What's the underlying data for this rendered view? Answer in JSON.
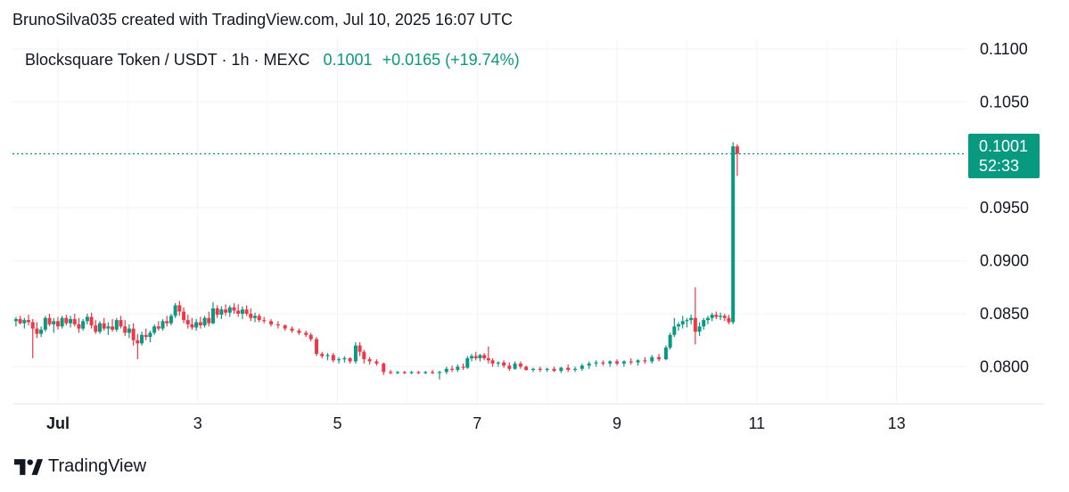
{
  "attribution": "BrunoSilva035 created with TradingView.com, Jul 10, 2025 16:07 UTC",
  "legend": {
    "symbol": "Blocksquare Token / USDT · 1h · MEXC",
    "price": "0.1001",
    "change": "+0.0165 (+19.74%)"
  },
  "price_tag": {
    "price": "0.1001",
    "countdown": "52:33"
  },
  "footer": {
    "brand": "TradingView",
    "logo_icon": "tradingview-logo-icon"
  },
  "colors": {
    "up": "#089981",
    "down": "#F23645",
    "grid": "#F0F3FA",
    "dotted": "#089981"
  },
  "chart_data": {
    "type": "candlestick",
    "xlabel": "",
    "ylabel": "",
    "x_ticks": [
      "Jul",
      "3",
      "5",
      "7",
      "9",
      "11",
      "13"
    ],
    "y_ticks": [
      "0.1100",
      "0.1050",
      "0.0950",
      "0.0900",
      "0.0850",
      "0.0800"
    ],
    "ylim": [
      0.0765,
      0.111
    ],
    "xlim_days": [
      0.35,
      14.0
    ],
    "last_price": 0.1001,
    "grid": true,
    "series": [
      {
        "values": [
          [
            0.4,
            0.0843,
            0.0847,
            0.0838,
            0.0845
          ],
          [
            0.46,
            0.0845,
            0.0848,
            0.084,
            0.0841
          ],
          [
            0.52,
            0.0841,
            0.0846,
            0.0836,
            0.0844
          ],
          [
            0.58,
            0.0844,
            0.0849,
            0.0839,
            0.0842
          ],
          [
            0.64,
            0.0842,
            0.0845,
            0.0808,
            0.0836
          ],
          [
            0.7,
            0.0836,
            0.0842,
            0.0827,
            0.0831
          ],
          [
            0.76,
            0.0831,
            0.0838,
            0.0828,
            0.0835
          ],
          [
            0.82,
            0.0835,
            0.0848,
            0.0833,
            0.0846
          ],
          [
            0.88,
            0.0846,
            0.085,
            0.0838,
            0.084
          ],
          [
            0.94,
            0.084,
            0.0846,
            0.0832,
            0.0843
          ],
          [
            1.0,
            0.0843,
            0.0847,
            0.0835,
            0.0838
          ],
          [
            1.06,
            0.0838,
            0.0848,
            0.0836,
            0.0846
          ],
          [
            1.12,
            0.0846,
            0.0849,
            0.0839,
            0.0841
          ],
          [
            1.18,
            0.0841,
            0.0848,
            0.0837,
            0.0845
          ],
          [
            1.24,
            0.0845,
            0.085,
            0.0838,
            0.084
          ],
          [
            1.3,
            0.084,
            0.0846,
            0.0832,
            0.0836
          ],
          [
            1.36,
            0.0836,
            0.0845,
            0.0834,
            0.0843
          ],
          [
            1.42,
            0.0843,
            0.085,
            0.084,
            0.0847
          ],
          [
            1.48,
            0.0847,
            0.0851,
            0.0836,
            0.0839
          ],
          [
            1.54,
            0.0839,
            0.0844,
            0.0831,
            0.0833
          ],
          [
            1.6,
            0.0833,
            0.0843,
            0.0831,
            0.0841
          ],
          [
            1.66,
            0.0841,
            0.0846,
            0.0834,
            0.0836
          ],
          [
            1.72,
            0.0836,
            0.0842,
            0.083,
            0.0838
          ],
          [
            1.78,
            0.0838,
            0.0845,
            0.0833,
            0.0835
          ],
          [
            1.84,
            0.0835,
            0.0846,
            0.0833,
            0.0844
          ],
          [
            1.9,
            0.0844,
            0.0848,
            0.0836,
            0.0838
          ],
          [
            1.96,
            0.0838,
            0.0844,
            0.0829,
            0.0832
          ],
          [
            2.02,
            0.0832,
            0.084,
            0.0827,
            0.0836
          ],
          [
            2.08,
            0.0836,
            0.0841,
            0.082,
            0.0825
          ],
          [
            2.14,
            0.0825,
            0.0831,
            0.0807,
            0.0822
          ],
          [
            2.2,
            0.0822,
            0.0833,
            0.082,
            0.083
          ],
          [
            2.26,
            0.083,
            0.0836,
            0.0825,
            0.0828
          ],
          [
            2.32,
            0.0828,
            0.0834,
            0.0823,
            0.0832
          ],
          [
            2.38,
            0.0832,
            0.084,
            0.083,
            0.0838
          ],
          [
            2.44,
            0.0838,
            0.0843,
            0.0834,
            0.0836
          ],
          [
            2.5,
            0.0836,
            0.0845,
            0.0834,
            0.0843
          ],
          [
            2.56,
            0.0843,
            0.0848,
            0.0838,
            0.0841
          ],
          [
            2.62,
            0.0841,
            0.085,
            0.0839,
            0.0848
          ],
          [
            2.68,
            0.0848,
            0.086,
            0.0846,
            0.0858
          ],
          [
            2.74,
            0.0858,
            0.0862,
            0.0848,
            0.0852
          ],
          [
            2.8,
            0.0852,
            0.0856,
            0.0841,
            0.0844
          ],
          [
            2.86,
            0.0844,
            0.0849,
            0.0836,
            0.084
          ],
          [
            2.92,
            0.084,
            0.0846,
            0.0835,
            0.0837
          ],
          [
            2.98,
            0.0837,
            0.0845,
            0.0834,
            0.0842
          ],
          [
            3.04,
            0.0842,
            0.0847,
            0.0836,
            0.0839
          ],
          [
            3.1,
            0.0839,
            0.0848,
            0.0837,
            0.0846
          ],
          [
            3.16,
            0.0846,
            0.0852,
            0.0838,
            0.0841
          ],
          [
            3.22,
            0.0841,
            0.0861,
            0.084,
            0.0855
          ],
          [
            3.28,
            0.0855,
            0.0858,
            0.0846,
            0.0849
          ],
          [
            3.34,
            0.0849,
            0.0857,
            0.0845,
            0.0854
          ],
          [
            3.4,
            0.0854,
            0.0859,
            0.0848,
            0.0851
          ],
          [
            3.46,
            0.0851,
            0.0858,
            0.0847,
            0.0856
          ],
          [
            3.52,
            0.0856,
            0.086,
            0.085,
            0.0853
          ],
          [
            3.58,
            0.0853,
            0.0859,
            0.0847,
            0.085
          ],
          [
            3.64,
            0.085,
            0.0857,
            0.0845,
            0.0854
          ],
          [
            3.7,
            0.0854,
            0.0858,
            0.0848,
            0.085
          ],
          [
            3.76,
            0.085,
            0.0855,
            0.0843,
            0.0846
          ],
          [
            3.82,
            0.0846,
            0.0851,
            0.0842,
            0.0848
          ],
          [
            3.88,
            0.0848,
            0.085,
            0.0842,
            0.0844
          ],
          [
            3.95,
            0.0844,
            0.0847,
            0.0841,
            0.0843
          ],
          [
            4.05,
            0.0843,
            0.0845,
            0.0838,
            0.084
          ],
          [
            4.15,
            0.084,
            0.0843,
            0.0836,
            0.0839
          ],
          [
            4.25,
            0.0839,
            0.084,
            0.0834,
            0.0836
          ],
          [
            4.35,
            0.0836,
            0.0838,
            0.0832,
            0.0834
          ],
          [
            4.45,
            0.0834,
            0.0836,
            0.083,
            0.0832
          ],
          [
            4.55,
            0.0832,
            0.0834,
            0.0828,
            0.083
          ],
          [
            4.62,
            0.083,
            0.0832,
            0.0824,
            0.0826
          ],
          [
            4.7,
            0.0826,
            0.0828,
            0.081,
            0.0812
          ],
          [
            4.78,
            0.0812,
            0.0814,
            0.0808,
            0.081
          ],
          [
            4.86,
            0.081,
            0.0813,
            0.0806,
            0.0811
          ],
          [
            4.94,
            0.0811,
            0.0813,
            0.0804,
            0.0806
          ],
          [
            5.02,
            0.0806,
            0.0809,
            0.0803,
            0.0807
          ],
          [
            5.1,
            0.0807,
            0.081,
            0.0804,
            0.0808
          ],
          [
            5.18,
            0.0808,
            0.0809,
            0.0803,
            0.0805
          ],
          [
            5.26,
            0.0805,
            0.0823,
            0.0803,
            0.082
          ],
          [
            5.32,
            0.082,
            0.0823,
            0.081,
            0.0814
          ],
          [
            5.38,
            0.0814,
            0.0816,
            0.0803,
            0.0807
          ],
          [
            5.46,
            0.0807,
            0.0809,
            0.0802,
            0.0805
          ],
          [
            5.56,
            0.0805,
            0.0807,
            0.0801,
            0.0803
          ],
          [
            5.66,
            0.0803,
            0.0804,
            0.0792,
            0.0795
          ],
          [
            5.76,
            0.0795,
            0.0797,
            0.0793,
            0.0794
          ],
          [
            5.86,
            0.0794,
            0.0796,
            0.0793,
            0.0795
          ],
          [
            5.96,
            0.0795,
            0.0796,
            0.0793,
            0.0794
          ],
          [
            6.06,
            0.0794,
            0.0796,
            0.0793,
            0.0795
          ],
          [
            6.16,
            0.0795,
            0.0796,
            0.0793,
            0.0794
          ],
          [
            6.26,
            0.0794,
            0.0796,
            0.0793,
            0.0795
          ],
          [
            6.36,
            0.0795,
            0.0797,
            0.0793,
            0.0794
          ],
          [
            6.46,
            0.0794,
            0.0796,
            0.0788,
            0.0795
          ],
          [
            6.56,
            0.0795,
            0.08,
            0.0793,
            0.0798
          ],
          [
            6.64,
            0.0798,
            0.0801,
            0.0795,
            0.0797
          ],
          [
            6.72,
            0.0797,
            0.0802,
            0.0795,
            0.08
          ],
          [
            6.8,
            0.08,
            0.0803,
            0.0797,
            0.0799
          ],
          [
            6.86,
            0.0799,
            0.081,
            0.0798,
            0.0808
          ],
          [
            6.92,
            0.0808,
            0.0812,
            0.0805,
            0.081
          ],
          [
            6.98,
            0.081,
            0.0814,
            0.0806,
            0.0808
          ],
          [
            7.04,
            0.0808,
            0.0812,
            0.0805,
            0.0811
          ],
          [
            7.1,
            0.0811,
            0.0813,
            0.0806,
            0.0808
          ],
          [
            7.16,
            0.0808,
            0.0819,
            0.0803,
            0.0806
          ],
          [
            7.22,
            0.0806,
            0.0808,
            0.08,
            0.0803
          ],
          [
            7.3,
            0.0803,
            0.0805,
            0.08,
            0.0804
          ],
          [
            7.38,
            0.0804,
            0.0806,
            0.0799,
            0.0801
          ],
          [
            7.46,
            0.0801,
            0.0804,
            0.0796,
            0.0798
          ],
          [
            7.54,
            0.0798,
            0.0805,
            0.0797,
            0.0803
          ],
          [
            7.62,
            0.0803,
            0.0805,
            0.0798,
            0.08
          ],
          [
            7.7,
            0.08,
            0.0801,
            0.0796,
            0.0797
          ],
          [
            7.8,
            0.0797,
            0.0799,
            0.0795,
            0.0798
          ],
          [
            7.9,
            0.0798,
            0.08,
            0.0795,
            0.0797
          ],
          [
            8.0,
            0.0797,
            0.0799,
            0.0795,
            0.0798
          ],
          [
            8.1,
            0.0798,
            0.08,
            0.0795,
            0.0796
          ],
          [
            8.2,
            0.0796,
            0.08,
            0.0794,
            0.0799
          ],
          [
            8.3,
            0.0799,
            0.0802,
            0.0795,
            0.0797
          ],
          [
            8.4,
            0.0797,
            0.08,
            0.0795,
            0.0798
          ],
          [
            8.5,
            0.0798,
            0.0803,
            0.0796,
            0.0801
          ],
          [
            8.6,
            0.0801,
            0.0805,
            0.0798,
            0.0803
          ],
          [
            8.7,
            0.0803,
            0.0806,
            0.08,
            0.0804
          ],
          [
            8.8,
            0.0804,
            0.0806,
            0.0801,
            0.0803
          ],
          [
            8.9,
            0.0803,
            0.0806,
            0.08,
            0.0805
          ],
          [
            9.0,
            0.0805,
            0.0807,
            0.0801,
            0.0803
          ],
          [
            9.1,
            0.0803,
            0.0806,
            0.08,
            0.0805
          ],
          [
            9.2,
            0.0805,
            0.0808,
            0.0802,
            0.0804
          ],
          [
            9.3,
            0.0804,
            0.0807,
            0.0801,
            0.0806
          ],
          [
            9.4,
            0.0806,
            0.0809,
            0.0803,
            0.0805
          ],
          [
            9.5,
            0.0805,
            0.0811,
            0.0803,
            0.0809
          ],
          [
            9.6,
            0.0809,
            0.0812,
            0.0805,
            0.0807
          ],
          [
            9.7,
            0.0807,
            0.082,
            0.0806,
            0.0818
          ],
          [
            9.76,
            0.0818,
            0.0832,
            0.0816,
            0.083
          ],
          [
            9.82,
            0.083,
            0.0846,
            0.0828,
            0.0838
          ],
          [
            9.88,
            0.0838,
            0.0842,
            0.0834,
            0.084
          ],
          [
            9.94,
            0.084,
            0.0848,
            0.0836,
            0.0843
          ],
          [
            10.0,
            0.0843,
            0.0846,
            0.0837,
            0.0844
          ],
          [
            10.06,
            0.0844,
            0.0849,
            0.084,
            0.0846
          ],
          [
            10.12,
            0.0846,
            0.0875,
            0.0821,
            0.0833
          ],
          [
            10.18,
            0.0833,
            0.0842,
            0.0829,
            0.0838
          ],
          [
            10.24,
            0.0838,
            0.0846,
            0.0835,
            0.0844
          ],
          [
            10.3,
            0.0844,
            0.0848,
            0.084,
            0.0846
          ],
          [
            10.36,
            0.0846,
            0.0851,
            0.0843,
            0.0849
          ],
          [
            10.42,
            0.0849,
            0.0852,
            0.0845,
            0.0847
          ],
          [
            10.48,
            0.0847,
            0.0851,
            0.0844,
            0.0848
          ],
          [
            10.54,
            0.0848,
            0.085,
            0.0843,
            0.0846
          ],
          [
            10.6,
            0.0846,
            0.0849,
            0.084,
            0.0842
          ],
          [
            10.66,
            0.0842,
            0.1012,
            0.084,
            0.1008
          ],
          [
            10.72,
            0.1008,
            0.101,
            0.098,
            0.1001
          ]
        ]
      }
    ]
  }
}
